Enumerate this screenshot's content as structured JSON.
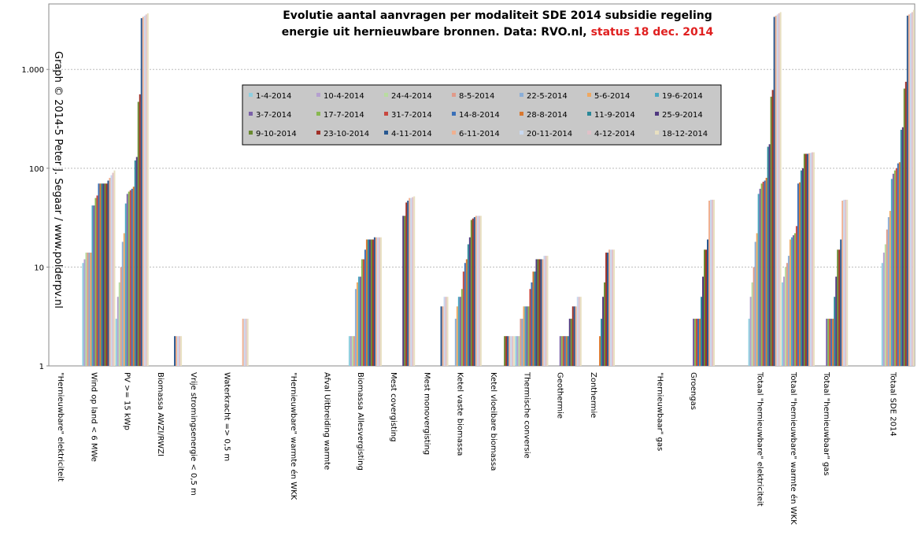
{
  "chart_data": {
    "type": "bar",
    "title_line1": "Evolutie aantal aanvragen per modaliteit SDE 2014 subsidie regeling",
    "title_line2": "energie uit hernieuwbare bronnen. Data: RVO.nl,",
    "title_status": "status 18 dec. 2014",
    "credit": "Graph © 2014-5 Peter J. Segaar / www.polderpv.nl",
    "log_scale": true,
    "grid": true,
    "legend": "center",
    "ylim": [
      1,
      4600
    ],
    "yticks": [
      1,
      10,
      100,
      {
        "value": 1000,
        "label": "1.000"
      }
    ],
    "categories": [
      "\"Hernieuwbare\" elektriciteit",
      "Wind op land < 6 MWe",
      "PV >= 15 kWp",
      "Biomassa AWZI/RWZI",
      "Vrije stromingsenergie < 0,5 m",
      "Waterkracht => 0,5 m",
      null,
      "\"Hernieuwbare\" warmte én WKK",
      "Afval Uitbreiding warmte",
      "Biomassa Allesvergisting",
      "Mest covergisting",
      "Mest monovergisting",
      "Ketel vaste biomassa",
      "Ketel vloeibare biomassa",
      "Thermische conversie",
      "Geothermie",
      "Zonthermie",
      null,
      "\"Hernieuwbaar\" gas",
      "Groengas",
      null,
      "Totaal \"hernieuwbare\" elektriciteit",
      "Totaal \"hernieuwbare\" warmte én WKK",
      "Totaal \"hernieuwbaar\" gas",
      null,
      "Totaal SDE 2014"
    ],
    "series": [
      {
        "name": "1-4-2014",
        "color": "#8ecfe0",
        "values": [
          null,
          11,
          3,
          null,
          null,
          null,
          null,
          null,
          null,
          2,
          null,
          null,
          null,
          null,
          2,
          null,
          null,
          null,
          null,
          null,
          null,
          3,
          7,
          null,
          null,
          11
        ]
      },
      {
        "name": "10-4-2014",
        "color": "#b5a0d0",
        "values": [
          null,
          12,
          5,
          null,
          null,
          null,
          null,
          null,
          null,
          2,
          null,
          null,
          null,
          null,
          2,
          null,
          null,
          null,
          null,
          null,
          null,
          5,
          8,
          null,
          null,
          14
        ]
      },
      {
        "name": "24-4-2014",
        "color": "#b8dca0",
        "values": [
          null,
          14,
          7,
          null,
          null,
          null,
          null,
          null,
          null,
          2,
          null,
          null,
          null,
          null,
          2,
          null,
          null,
          null,
          null,
          null,
          null,
          7,
          10,
          null,
          null,
          17
        ]
      },
      {
        "name": "8-5-2014",
        "color": "#e09a8a",
        "values": [
          null,
          14,
          10,
          null,
          null,
          null,
          null,
          null,
          null,
          2,
          null,
          null,
          null,
          null,
          3,
          null,
          null,
          null,
          null,
          null,
          null,
          10,
          11,
          null,
          null,
          24
        ]
      },
      {
        "name": "22-5-2014",
        "color": "#8aaed8",
        "values": [
          null,
          14,
          18,
          null,
          null,
          null,
          null,
          null,
          null,
          6,
          null,
          null,
          3,
          null,
          3,
          null,
          null,
          null,
          null,
          null,
          null,
          18,
          13,
          null,
          null,
          32
        ]
      },
      {
        "name": "5-6-2014",
        "color": "#f0a860",
        "values": [
          null,
          14,
          22,
          null,
          null,
          null,
          null,
          null,
          null,
          7,
          null,
          null,
          4,
          null,
          4,
          null,
          null,
          null,
          null,
          null,
          null,
          22,
          19,
          null,
          null,
          37
        ]
      },
      {
        "name": "19-6-2014",
        "color": "#4aa8c0",
        "values": [
          null,
          42,
          44,
          null,
          null,
          null,
          null,
          null,
          null,
          8,
          null,
          null,
          5,
          null,
          4,
          null,
          null,
          null,
          null,
          null,
          null,
          55,
          20,
          null,
          null,
          78
        ]
      },
      {
        "name": "3-7-2014",
        "color": "#7a60a8",
        "values": [
          null,
          42,
          55,
          null,
          null,
          null,
          null,
          null,
          null,
          8,
          null,
          null,
          5,
          null,
          4,
          2,
          null,
          null,
          null,
          3,
          null,
          62,
          21,
          3,
          null,
          88
        ]
      },
      {
        "name": "17-7-2014",
        "color": "#88b850",
        "values": [
          null,
          50,
          58,
          null,
          null,
          null,
          null,
          null,
          null,
          12,
          null,
          null,
          6,
          null,
          4,
          2,
          null,
          null,
          null,
          3,
          null,
          70,
          22,
          3,
          null,
          95
        ]
      },
      {
        "name": "31-7-2014",
        "color": "#c84840",
        "values": [
          null,
          53,
          60,
          null,
          null,
          null,
          null,
          null,
          null,
          12,
          null,
          null,
          9,
          null,
          6,
          2,
          null,
          null,
          null,
          3,
          null,
          73,
          26,
          3,
          null,
          100
        ]
      },
      {
        "name": "14-8-2014",
        "color": "#3a70b8",
        "values": [
          null,
          70,
          62,
          null,
          null,
          null,
          null,
          null,
          null,
          15,
          null,
          null,
          11,
          null,
          7,
          2,
          null,
          null,
          null,
          3,
          null,
          75,
          70,
          3,
          null,
          112
        ]
      },
      {
        "name": "28-8-2014",
        "color": "#d87830",
        "values": [
          null,
          70,
          65,
          null,
          null,
          null,
          null,
          null,
          null,
          19,
          null,
          null,
          12,
          null,
          9,
          2,
          2,
          null,
          null,
          3,
          null,
          80,
          72,
          3,
          null,
          115
        ]
      },
      {
        "name": "11-9-2014",
        "color": "#2a8898",
        "values": [
          null,
          70,
          120,
          null,
          null,
          null,
          null,
          null,
          null,
          19,
          null,
          null,
          17,
          null,
          9,
          2,
          3,
          null,
          null,
          5,
          null,
          165,
          95,
          5,
          null,
          245
        ]
      },
      {
        "name": "25-9-2014",
        "color": "#503880",
        "values": [
          null,
          70,
          130,
          null,
          null,
          null,
          null,
          null,
          null,
          19,
          33,
          null,
          20,
          null,
          12,
          3,
          5,
          null,
          null,
          8,
          null,
          175,
          100,
          8,
          null,
          260
        ]
      },
      {
        "name": "9-10-2014",
        "color": "#6a8a30",
        "values": [
          null,
          70,
          470,
          null,
          null,
          null,
          null,
          null,
          null,
          19,
          33,
          null,
          30,
          2,
          12,
          3,
          7,
          null,
          null,
          15,
          null,
          530,
          140,
          15,
          null,
          640
        ]
      },
      {
        "name": "23-10-2014",
        "color": "#a03028",
        "values": [
          null,
          70,
          560,
          null,
          null,
          null,
          null,
          null,
          null,
          19,
          45,
          null,
          31,
          2,
          12,
          4,
          14,
          null,
          null,
          15,
          null,
          620,
          140,
          15,
          null,
          750
        ]
      },
      {
        "name": "4-11-2014",
        "color": "#285890",
        "values": [
          null,
          75,
          3300,
          2,
          null,
          null,
          null,
          null,
          null,
          20,
          47,
          4,
          32,
          2,
          12,
          4,
          14,
          null,
          null,
          19,
          null,
          3400,
          140,
          19,
          null,
          3500
        ]
      },
      {
        "name": "6-11-2014",
        "color": "#f0b090",
        "values": [
          null,
          80,
          3400,
          2,
          null,
          3,
          null,
          null,
          null,
          20,
          50,
          4,
          33,
          2,
          12,
          4,
          15,
          null,
          null,
          47,
          null,
          3500,
          142,
          47,
          null,
          3600
        ]
      },
      {
        "name": "20-11-2014",
        "color": "#c8d8f0",
        "values": [
          null,
          85,
          3500,
          2,
          null,
          3,
          null,
          null,
          null,
          20,
          50,
          5,
          33,
          2,
          13,
          5,
          15,
          null,
          null,
          48,
          null,
          3600,
          143,
          48,
          null,
          3700
        ]
      },
      {
        "name": "4-12-2014",
        "color": "#e0c0c8",
        "values": [
          null,
          90,
          3600,
          2,
          null,
          3,
          null,
          null,
          null,
          20,
          51,
          5,
          33,
          2,
          13,
          5,
          15,
          null,
          null,
          48,
          null,
          3700,
          145,
          48,
          null,
          3800
        ]
      },
      {
        "name": "18-12-2014",
        "color": "#e8e0c0",
        "values": [
          null,
          95,
          3700,
          2,
          null,
          3,
          null,
          null,
          null,
          20,
          52,
          5,
          33,
          2,
          13,
          5,
          15,
          null,
          null,
          48,
          null,
          3800,
          145,
          48,
          null,
          4000
        ]
      }
    ]
  }
}
